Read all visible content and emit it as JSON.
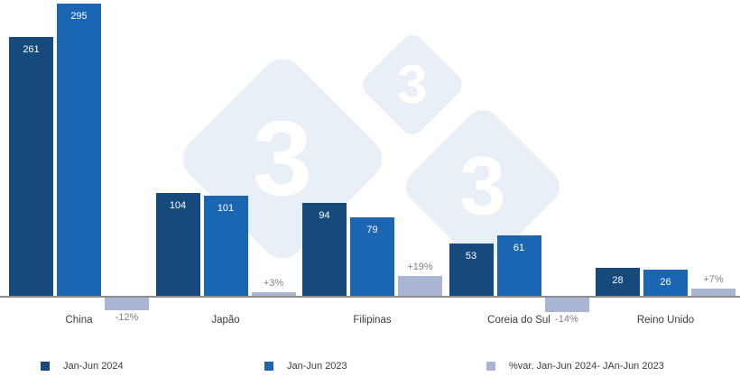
{
  "watermark": {
    "digit": "3",
    "color": "#e9eff6"
  },
  "colors": {
    "series_2024": "#164a7d",
    "series_2023": "#1a66b3",
    "series_var": "#aab5d3",
    "axis": "#8f8f8f",
    "value_label": "#ffffff",
    "var_label": "#7f7f7f",
    "category_label": "#3c3c3c"
  },
  "chart_data": {
    "type": "bar",
    "categories": [
      "China",
      "Japão",
      "Filipinas",
      "Coreia do Sul",
      "Reino Unido"
    ],
    "series": [
      {
        "name": "Jan-Jun 2024",
        "axis": "primary",
        "values": [
          261,
          104,
          94,
          53,
          28
        ]
      },
      {
        "name": "Jan-Jun 2023",
        "axis": "primary",
        "values": [
          295,
          101,
          79,
          61,
          26
        ]
      },
      {
        "name": "%var. Jan-Jun 2024- JAn-Jun 2023",
        "axis": "secondary",
        "values": [
          -12,
          3,
          19,
          -14,
          7
        ],
        "labels": [
          "-12%",
          "+3%",
          "+19%",
          "-14%",
          "+7%"
        ]
      }
    ],
    "title": "",
    "xlabel": "",
    "ylabel": "",
    "ylim": [
      0,
      295
    ],
    "grid": false,
    "legend_position": "bottom"
  },
  "legend": {
    "items": [
      {
        "label": "Jan-Jun 2024",
        "color": "#164a7d"
      },
      {
        "label": "Jan-Jun 2023",
        "color": "#1a66b3"
      },
      {
        "label": "%var. Jan-Jun 2024- JAn-Jun 2023",
        "color": "#aab5d3"
      }
    ]
  }
}
